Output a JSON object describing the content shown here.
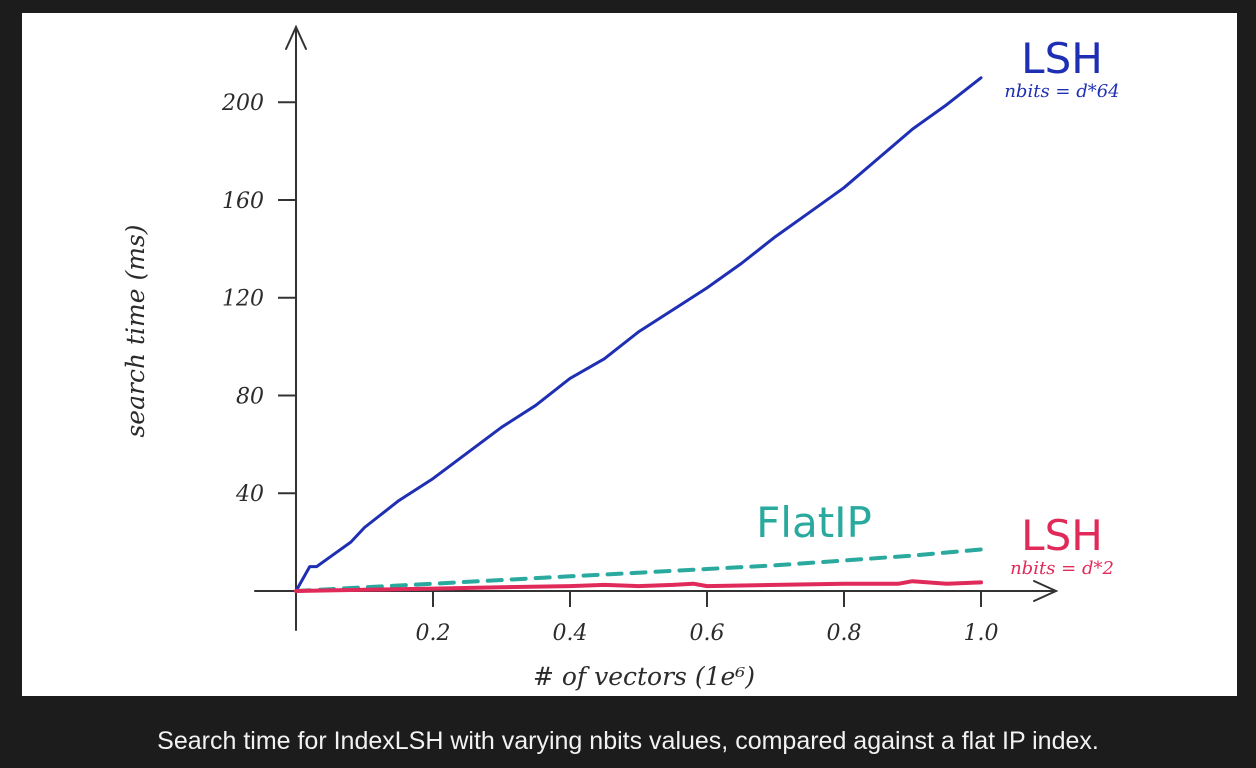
{
  "caption": "Search time for IndexLSH with varying nbits values, compared against a flat IP index.",
  "colors": {
    "page_background": "#1c1c1c",
    "panel_background": "#ffffff",
    "caption_text": "#f2f2f2",
    "axis": "#333333"
  },
  "chart_data": {
    "type": "line",
    "title": "",
    "xlabel": "# of vectors (1e⁶)",
    "ylabel": "search time (ms)",
    "xlim": [
      0,
      1.12
    ],
    "ylim": [
      0,
      220
    ],
    "x_ticks": [
      0.2,
      0.4,
      0.6,
      0.8,
      1.0
    ],
    "x_tick_labels": [
      "0.2",
      "0.4",
      "0.6",
      "0.8",
      "1.0"
    ],
    "y_ticks": [
      40,
      80,
      120,
      160,
      200
    ],
    "y_tick_labels": [
      "40",
      "80",
      "120",
      "160",
      "200"
    ],
    "grid": false,
    "legend": "inline labels at line ends",
    "series": [
      {
        "name": "LSH",
        "annotation": "nbits = d*64",
        "color": "#1f2fb4",
        "style": "solid",
        "x": [
          0,
          0.01,
          0.02,
          0.03,
          0.05,
          0.08,
          0.1,
          0.15,
          0.2,
          0.3,
          0.35,
          0.4,
          0.45,
          0.5,
          0.55,
          0.6,
          0.65,
          0.7,
          0.75,
          0.8,
          0.85,
          0.9,
          0.95,
          1.0
        ],
        "y": [
          0,
          5,
          10,
          10,
          14,
          20,
          26,
          37,
          46,
          67,
          76,
          87,
          95,
          106,
          115,
          124,
          134,
          145,
          155,
          165,
          177,
          189,
          199,
          210
        ]
      },
      {
        "name": "FlatIP",
        "annotation": "",
        "color": "#2aa99e",
        "style": "dashed",
        "x": [
          0,
          0.1,
          0.2,
          0.3,
          0.4,
          0.5,
          0.6,
          0.7,
          0.8,
          0.9,
          1.0
        ],
        "y": [
          0,
          1.5,
          3,
          4.5,
          6,
          7.5,
          9,
          10.5,
          12.5,
          14.5,
          17
        ]
      },
      {
        "name": "LSH",
        "annotation": "nbits = d*2",
        "color": "#e02a5a",
        "style": "solid",
        "x": [
          0,
          0.1,
          0.2,
          0.3,
          0.4,
          0.45,
          0.5,
          0.55,
          0.58,
          0.6,
          0.7,
          0.8,
          0.88,
          0.9,
          0.95,
          1.0
        ],
        "y": [
          0,
          0.5,
          1,
          1.5,
          2,
          2.5,
          2,
          2.5,
          3,
          2,
          2.5,
          3,
          3,
          4,
          3,
          3.5
        ]
      }
    ]
  }
}
